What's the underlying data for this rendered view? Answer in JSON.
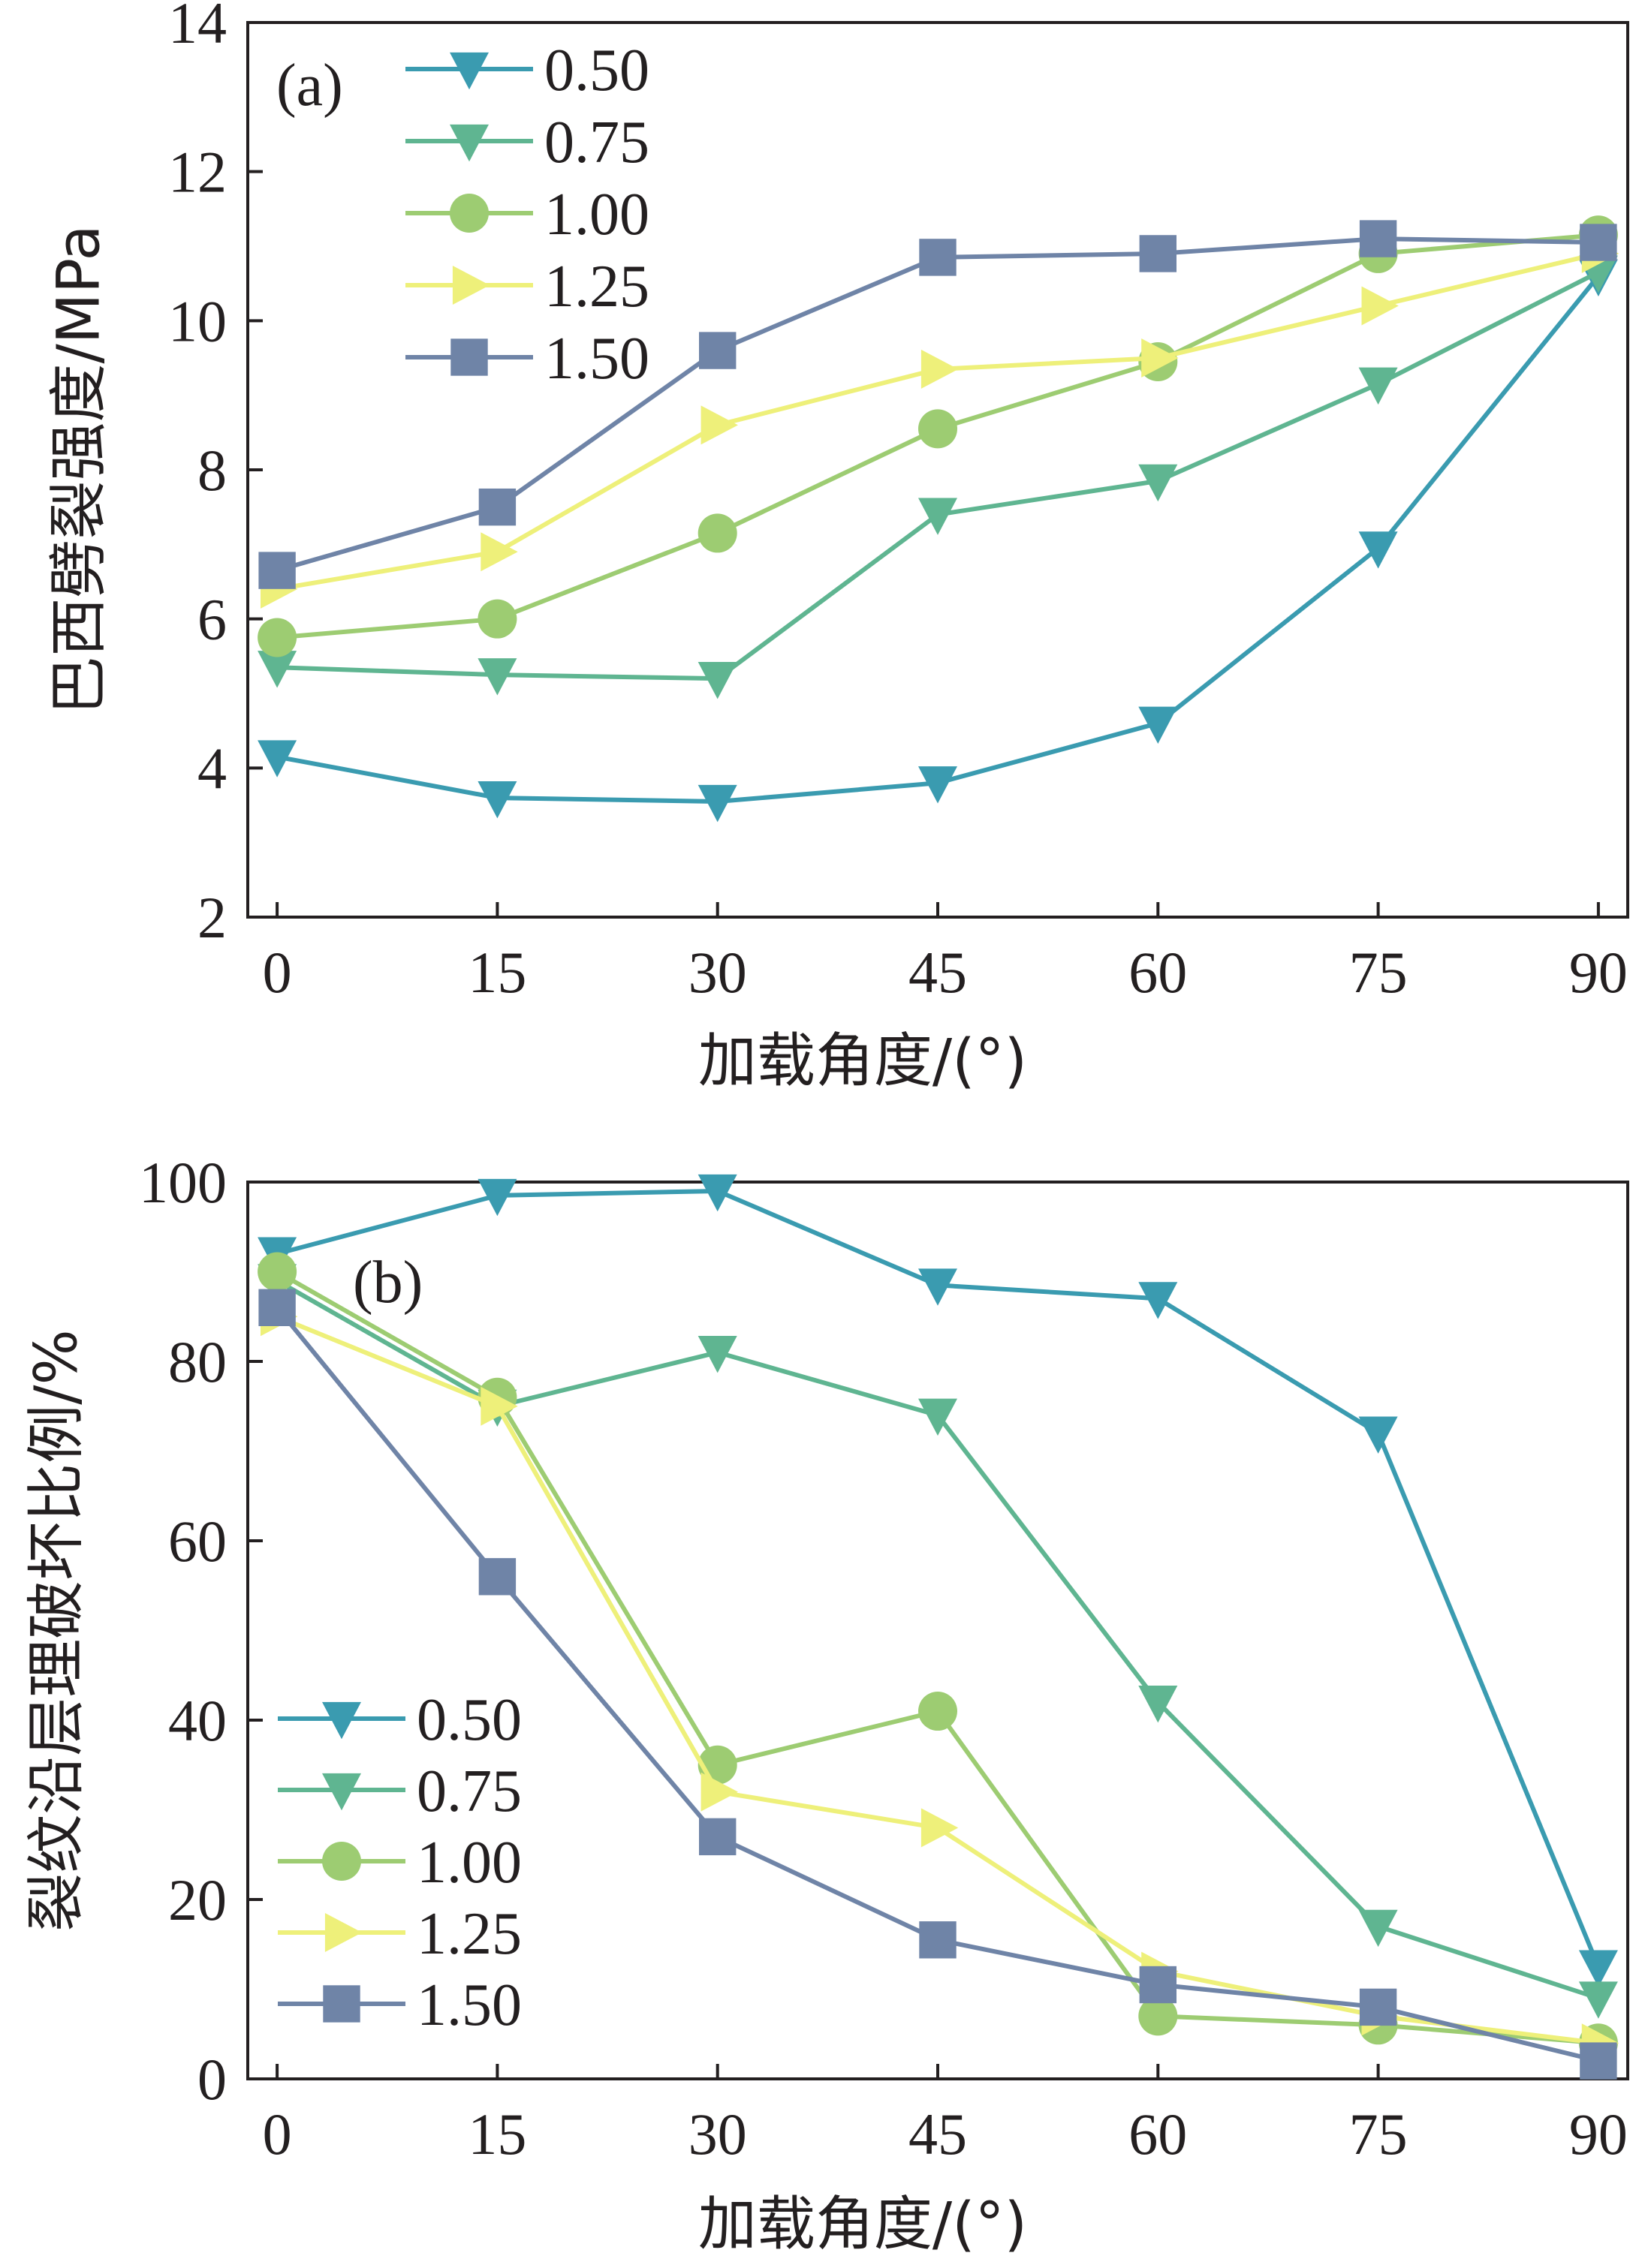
{
  "series_names": [
    "0.50",
    "0.75",
    "1.00",
    "1.25",
    "1.50"
  ],
  "series_colors": [
    "#3a9bb0",
    "#5fb591",
    "#9dcc72",
    "#eef07a",
    "#6f84a7"
  ],
  "series_markers": [
    "triangle-down",
    "triangle-down",
    "circle",
    "triangle-right",
    "square"
  ],
  "chart_data": [
    {
      "type": "line",
      "panel_label": "(a)",
      "title": "",
      "xlabel": "加载角度/(°)",
      "ylabel": "巴西劈裂强度/MPa",
      "x": [
        0,
        15,
        30,
        45,
        60,
        75,
        90
      ],
      "x_tick_labels": [
        "0",
        "15",
        "30",
        "45",
        "60",
        "75",
        "90"
      ],
      "xlim": [
        -2,
        92
      ],
      "ylim": [
        2,
        14
      ],
      "y_ticks": [
        2,
        4,
        6,
        8,
        10,
        12,
        14
      ],
      "legend_position": "top-left",
      "series": [
        {
          "name": "0.50",
          "values": [
            4.15,
            3.6,
            3.55,
            3.8,
            4.6,
            6.95,
            10.6
          ]
        },
        {
          "name": "0.75",
          "values": [
            5.35,
            5.25,
            5.2,
            7.4,
            7.85,
            9.15,
            10.65
          ]
        },
        {
          "name": "1.00",
          "values": [
            5.75,
            6.0,
            7.15,
            8.55,
            9.45,
            10.9,
            11.15
          ]
        },
        {
          "name": "1.25",
          "values": [
            6.4,
            6.9,
            8.6,
            9.35,
            9.5,
            10.2,
            10.9
          ]
        },
        {
          "name": "1.50",
          "values": [
            6.65,
            7.5,
            9.6,
            10.85,
            10.9,
            11.1,
            11.05
          ]
        }
      ]
    },
    {
      "type": "line",
      "panel_label": "(b)",
      "title": "",
      "xlabel": "加载角度/(°)",
      "ylabel": "裂纹沿层理破坏比例/%",
      "x": [
        0,
        15,
        30,
        45,
        60,
        75,
        90
      ],
      "x_tick_labels": [
        "0",
        "15",
        "30",
        "45",
        "60",
        "75",
        "90"
      ],
      "xlim": [
        -2,
        92
      ],
      "ylim": [
        0,
        100
      ],
      "y_ticks": [
        0,
        20,
        40,
        60,
        80,
        100
      ],
      "legend_position": "lower-left",
      "series": [
        {
          "name": "0.50",
          "values": [
            92,
            98.5,
            99,
            88.5,
            87,
            72,
            12.5
          ]
        },
        {
          "name": "0.75",
          "values": [
            89,
            75,
            81,
            74,
            42,
            17,
            9
          ]
        },
        {
          "name": "1.00",
          "values": [
            90,
            76,
            35,
            41,
            7,
            6,
            4
          ]
        },
        {
          "name": "1.25",
          "values": [
            85,
            75,
            32,
            28,
            12,
            7,
            4
          ]
        },
        {
          "name": "1.50",
          "values": [
            86,
            56,
            27,
            15.5,
            10.5,
            8,
            2
          ]
        }
      ]
    }
  ]
}
